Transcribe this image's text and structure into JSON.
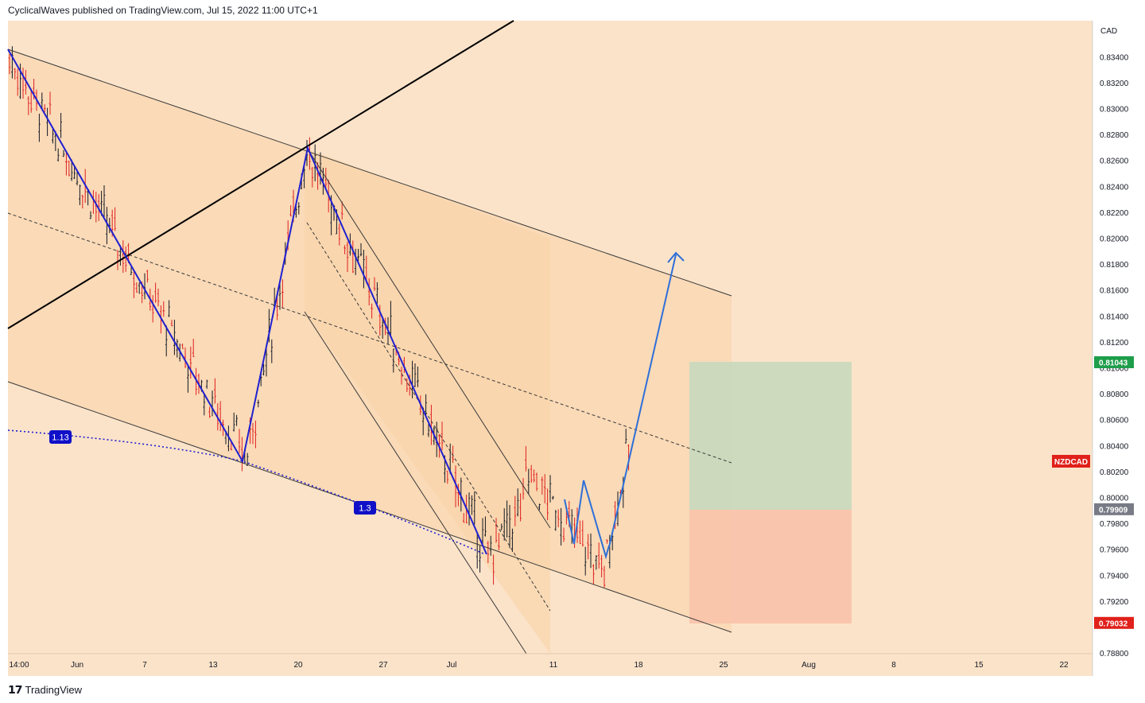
{
  "header": {
    "publisher": "CyclicalWaves published on TradingView.com, Jul 15, 2022 11:00 UTC+1"
  },
  "footer": {
    "brand": "TradingView"
  },
  "colors": {
    "background": "#fbe3c9",
    "shade": "#f9d3a8",
    "target_zone": "#c8d8bc",
    "stop_zone": "#f8c2aa",
    "wave": "#2020d0",
    "projection": "#2e6fd8",
    "candle_up": "#131722",
    "candle_down": "#e02020",
    "last_price_label": "#e0201a",
    "target_label": "#1e9e4a",
    "entry_label": "#787b86",
    "stop_label": "#e0201a"
  },
  "chart_data": {
    "type": "candlestick",
    "symbol": "NZDCAD",
    "currency": "CAD",
    "ylim": [
      0.788,
      0.8352
    ],
    "y_ticks": [
      "0.83400",
      "0.83200",
      "0.83000",
      "0.82800",
      "0.82600",
      "0.82400",
      "0.82200",
      "0.82000",
      "0.81800",
      "0.81600",
      "0.81400",
      "0.81200",
      "0.81000",
      "0.80800",
      "0.80600",
      "0.80400",
      "0.80200",
      "0.80000",
      "0.79800",
      "0.79600",
      "0.79400",
      "0.79200",
      "0.78800"
    ],
    "x_ticks": [
      "14:00",
      "Jun",
      "7",
      "13",
      "20",
      "27",
      "Jul",
      "11",
      "18",
      "25",
      "Aug",
      "8",
      "15",
      "22"
    ],
    "price_labels": {
      "target": "0.81043",
      "entry": "0.79909",
      "stop": "0.79032",
      "last_symbol": "NZDCAD"
    },
    "fib_labels": [
      "1.13",
      "1.3"
    ],
    "wave_points": [
      {
        "date": "2022-05-26",
        "price": 0.8345
      },
      {
        "date": "2022-06-15",
        "price": 0.803
      },
      {
        "date": "2022-06-20",
        "price": 0.827
      },
      {
        "date": "2022-07-05",
        "price": 0.7955
      },
      {
        "date": "2022-07-08",
        "price": 0.7995
      }
    ],
    "projection_target": 0.8188
  }
}
